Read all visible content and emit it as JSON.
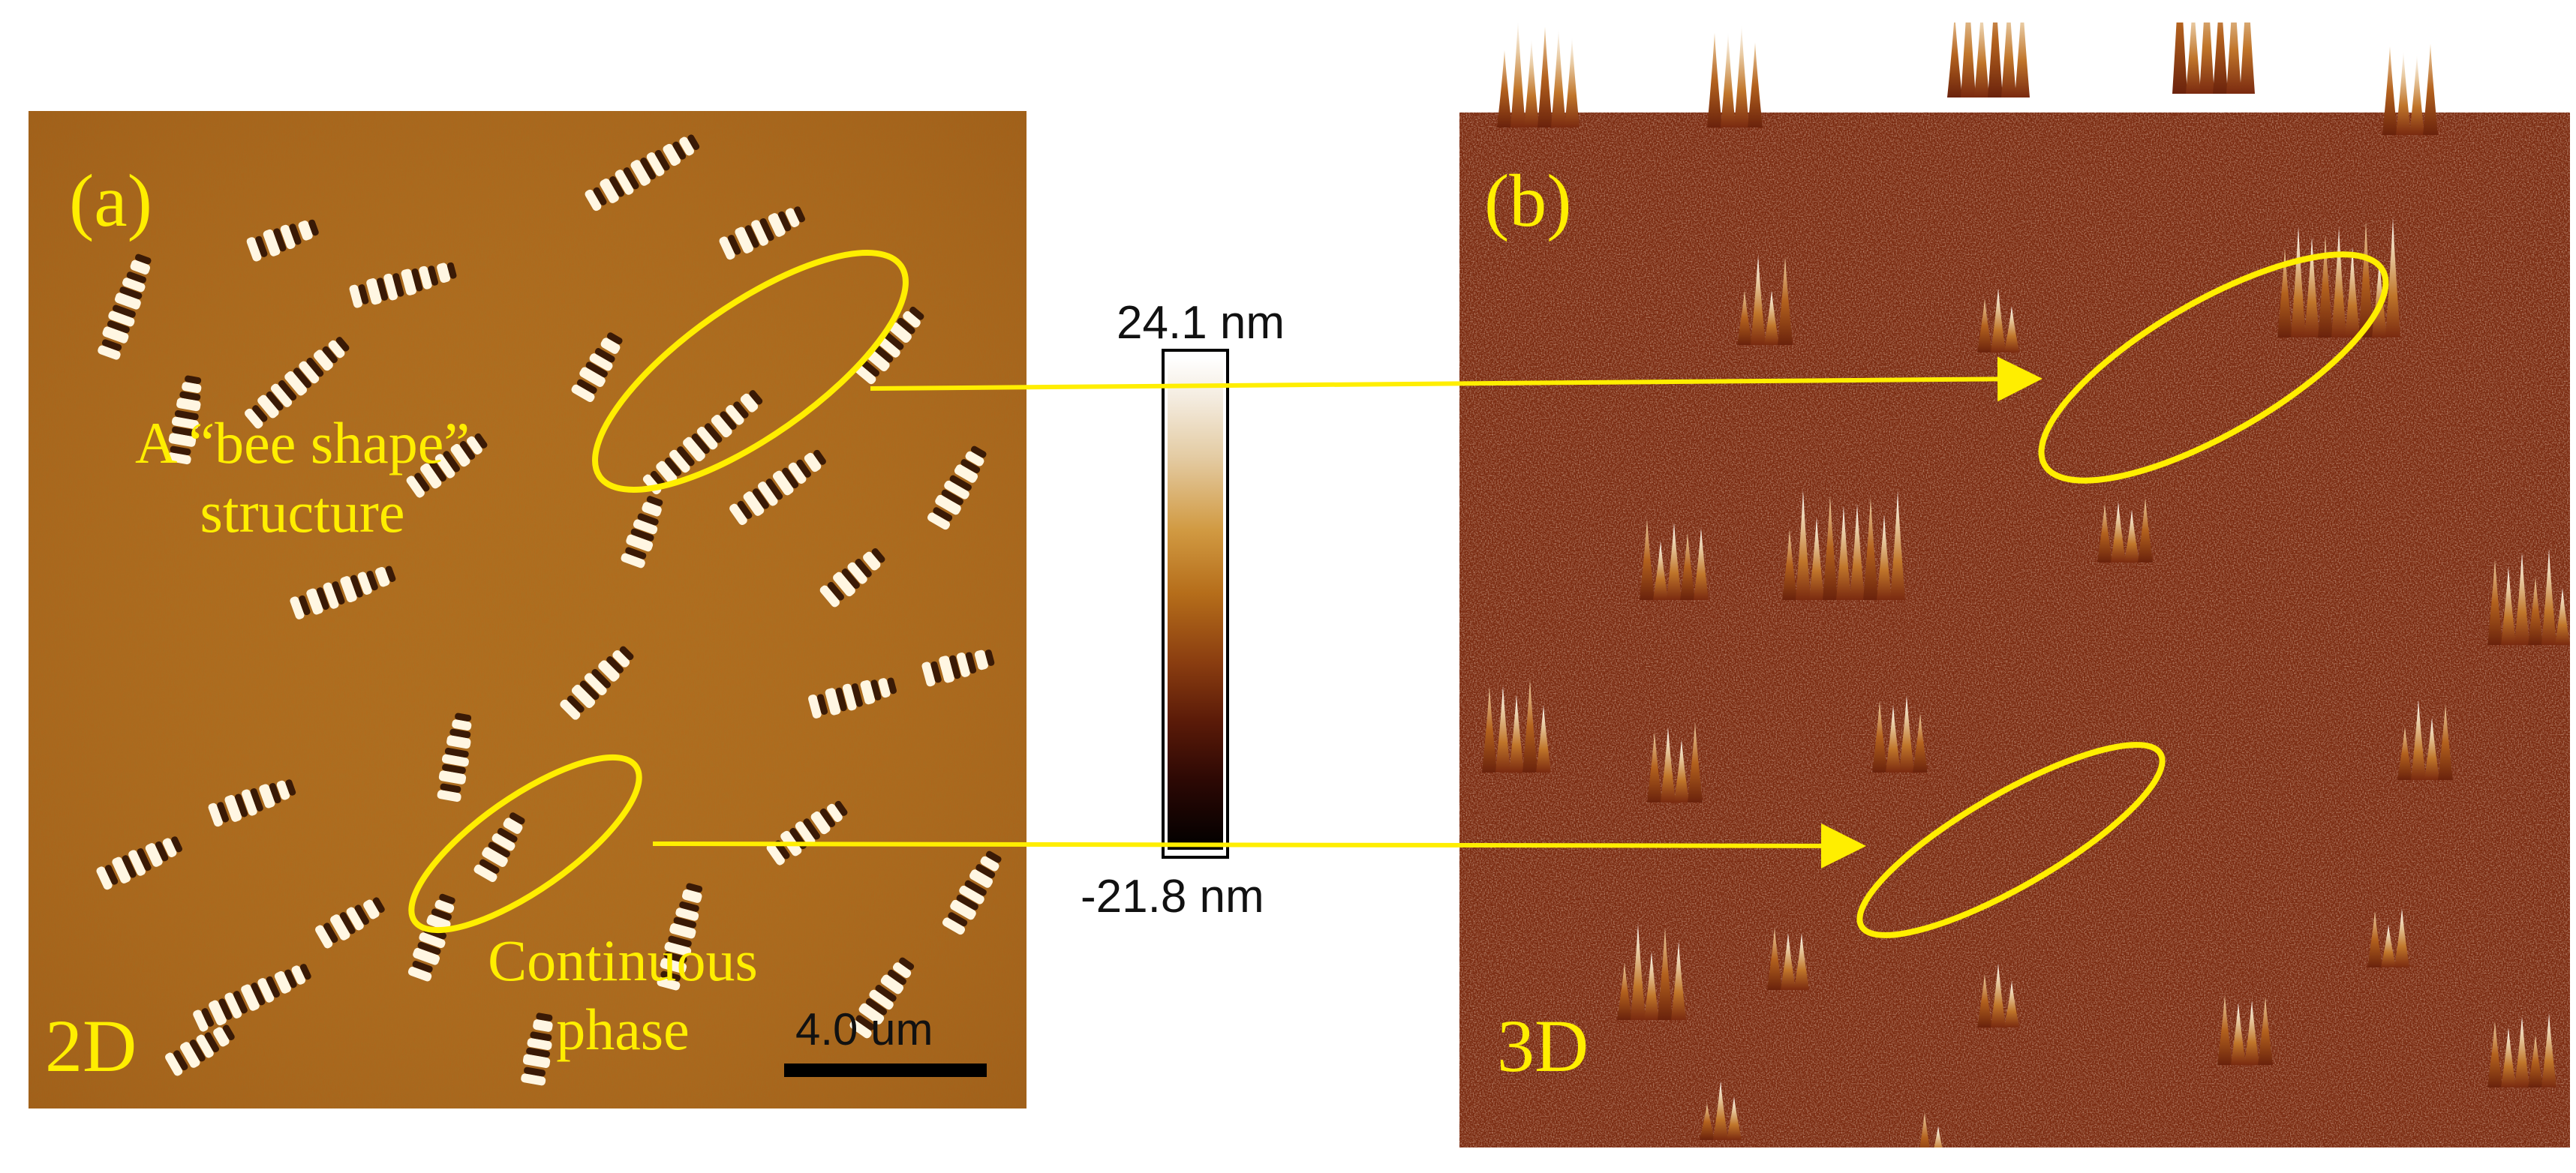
{
  "panels": {
    "a": {
      "label": "(a)",
      "view_label": "2D",
      "scale_bar": "4.0 um"
    },
    "b": {
      "label": "(b)",
      "view_label": "3D"
    }
  },
  "annotations": {
    "bee_shape_line1": "A “bee shape”",
    "bee_shape_line2": "structure",
    "continuous_line1": "Continuous",
    "continuous_line2": "phase"
  },
  "colorbar": {
    "max_label": "24.1 nm",
    "min_label": "-21.8 nm"
  },
  "colors": {
    "annotation": "#ffee00",
    "surface_2d_base": "#b26a1c",
    "surface_3d_base": "#7a2a10"
  }
}
